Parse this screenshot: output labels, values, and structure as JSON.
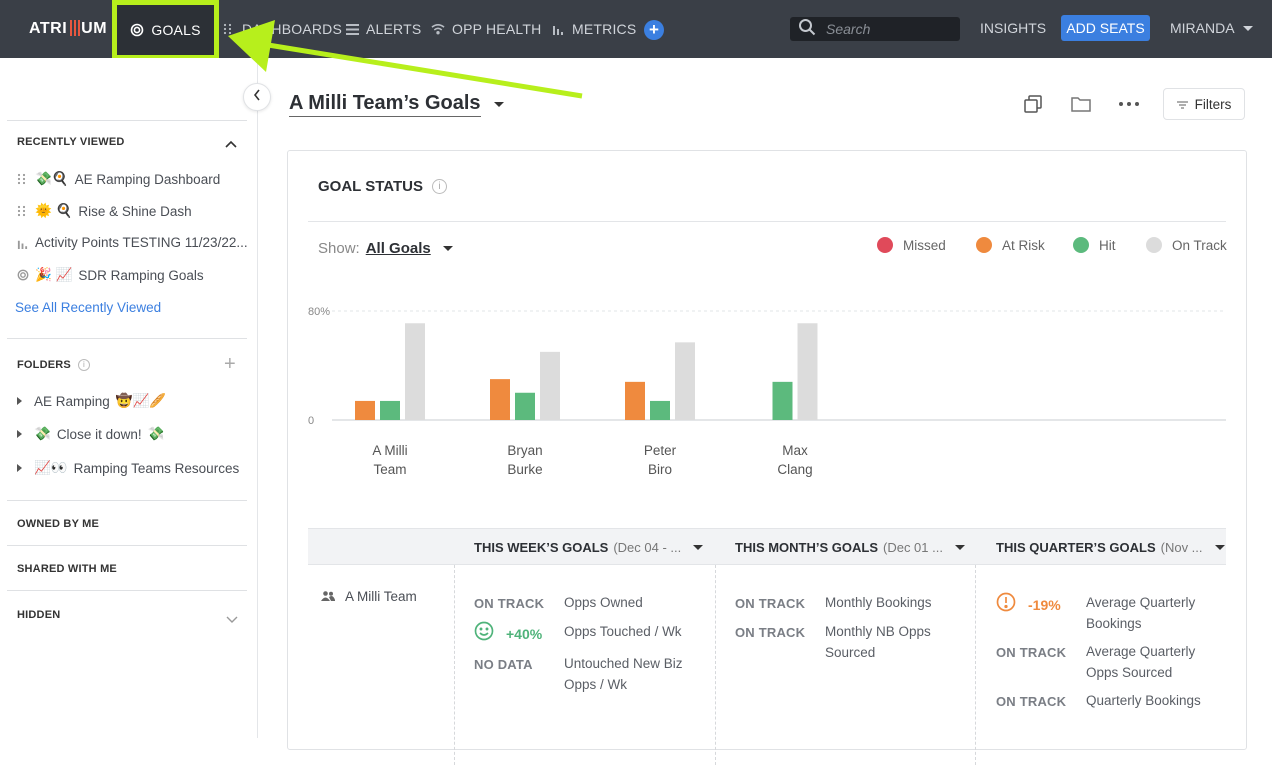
{
  "nav": {
    "logo": "ATRI",
    "logo_end": "UM",
    "items": [
      {
        "label": "GOALS",
        "icon": "goals-icon"
      },
      {
        "label": "DASHBOARDS",
        "icon": "grid-icon"
      },
      {
        "label": "ALERTS",
        "icon": "list-icon"
      },
      {
        "label": "OPP HEALTH",
        "icon": "wifi-icon"
      },
      {
        "label": "METRICS",
        "icon": "bar-chart-icon"
      }
    ],
    "plus": "+",
    "search_placeholder": "Search",
    "insights": "INSIGHTS",
    "add_seats": "ADD SEATS",
    "user": "MIRANDA"
  },
  "sidebar": {
    "recently_viewed_title": "RECENTLY VIEWED",
    "recent": [
      {
        "emoji": "💸🍳",
        "label": "AE Ramping Dashboard",
        "icon": "grid-icon"
      },
      {
        "emoji": "🌞 🍳",
        "label": "Rise & Shine Dash",
        "icon": "grid-icon"
      },
      {
        "emoji": "",
        "label": "Activity Points TESTING 11/23/22...",
        "icon": "bar-chart-icon"
      },
      {
        "emoji": "🎉 📈",
        "label": "SDR Ramping Goals",
        "icon": "goals-icon"
      }
    ],
    "see_all": "See All Recently Viewed",
    "folders_title": "FOLDERS",
    "folders": [
      {
        "label": "AE Ramping",
        "emoji": "🤠📈🥖"
      },
      {
        "label": "Close it down!",
        "emoji_pre": "💸",
        "emoji": "💸"
      },
      {
        "label": "Ramping Teams Resources",
        "emoji_pre": "📈👀"
      }
    ],
    "owned": "OWNED BY ME",
    "shared": "SHARED WITH ME",
    "hidden": "HIDDEN"
  },
  "main": {
    "title": "A Milli Team’s Goals",
    "filters": "Filters"
  },
  "card": {
    "title": "GOAL STATUS",
    "info": "i",
    "show_label": "Show:",
    "show_value": "All Goals",
    "legend": [
      {
        "label": "Missed",
        "color": "#e04a5a"
      },
      {
        "label": "At Risk",
        "color": "#ef8a3e"
      },
      {
        "label": "Hit",
        "color": "#5cba7d"
      },
      {
        "label": "On Track",
        "color": "#dcdcdc"
      }
    ]
  },
  "chart_data": {
    "type": "bar",
    "categories": [
      "A Milli Team",
      "Bryan Burke",
      "Peter Biro",
      "Max Clang"
    ],
    "series": [
      {
        "name": "Missed",
        "values": [
          0,
          0,
          0,
          0
        ],
        "color": "#e04a5a"
      },
      {
        "name": "At Risk",
        "values": [
          14,
          30,
          28,
          0
        ],
        "color": "#ef8a3e"
      },
      {
        "name": "Hit",
        "values": [
          14,
          20,
          14,
          28
        ],
        "color": "#5cba7d"
      },
      {
        "name": "On Track",
        "values": [
          71,
          50,
          57,
          71
        ],
        "color": "#dcdcdc"
      }
    ],
    "ytick_labels": [
      "0",
      "80%"
    ],
    "ylim": [
      0,
      80
    ],
    "grid": true,
    "legend": "top-right"
  },
  "table": {
    "headers": [
      {
        "title": "THIS WEEK’S GOALS",
        "range": "(Dec 04 - ..."
      },
      {
        "title": "THIS MONTH’S GOALS",
        "range": "(Dec 01 ..."
      },
      {
        "title": "THIS QUARTER’S GOALS",
        "range": "(Nov ..."
      }
    ],
    "row_name": "A Milli Team",
    "week": [
      {
        "status": "ON TRACK",
        "goal": "Opps Owned"
      },
      {
        "status": "+40%",
        "goal": "Opps Touched / Wk"
      },
      {
        "status": "NO DATA",
        "goal": "Untouched New Biz Opps / Wk"
      }
    ],
    "month": [
      {
        "status": "ON TRACK",
        "goal": "Monthly Bookings"
      },
      {
        "status": "ON TRACK",
        "goal": "Monthly NB Opps Sourced"
      }
    ],
    "quarter": [
      {
        "status": "-19%",
        "goal": "Average Quarterly Bookings"
      },
      {
        "status": "ON TRACK",
        "goal": "Average Quarterly Opps Sourced"
      },
      {
        "status": "ON TRACK",
        "goal": "Quarterly Bookings"
      }
    ]
  }
}
